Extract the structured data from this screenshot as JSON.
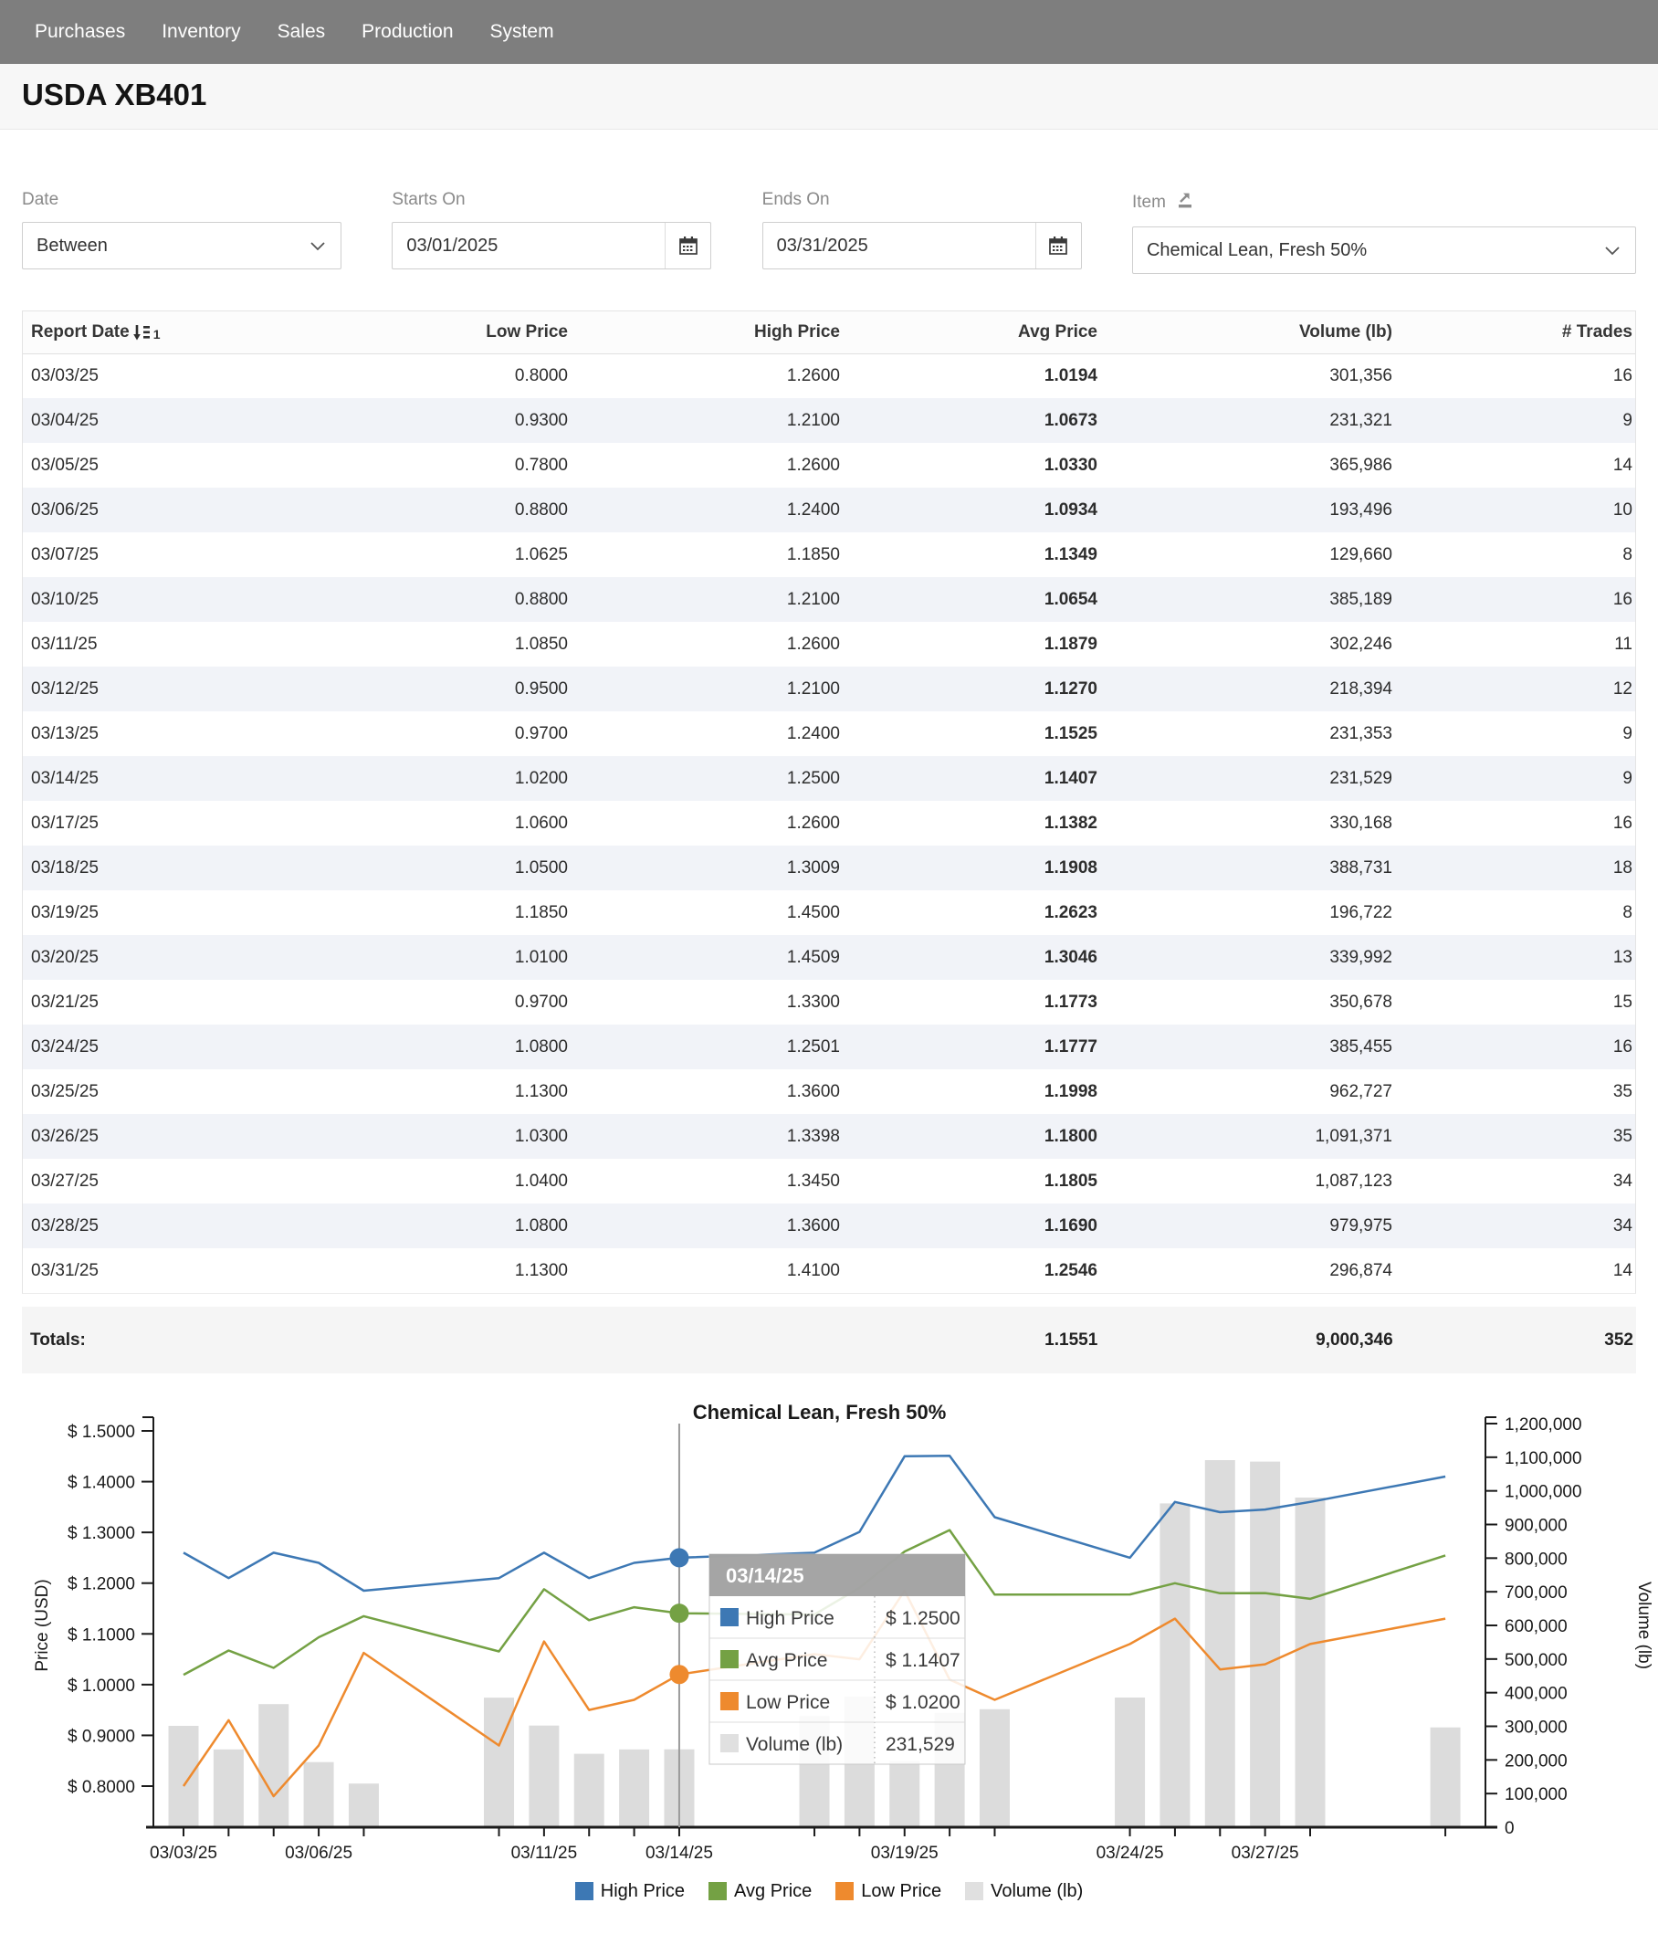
{
  "nav": {
    "items": [
      "Purchases",
      "Inventory",
      "Sales",
      "Production",
      "System"
    ]
  },
  "page": {
    "title": "USDA XB401"
  },
  "filters": {
    "date": {
      "label": "Date",
      "value": "Between"
    },
    "starts_on": {
      "label": "Starts On",
      "value": "03/01/2025"
    },
    "ends_on": {
      "label": "Ends On",
      "value": "03/31/2025"
    },
    "item": {
      "label": "Item",
      "value": "Chemical Lean, Fresh 50%"
    }
  },
  "table": {
    "columns": [
      "Report Date",
      "Low Price",
      "High Price",
      "Avg Price",
      "Volume (lb)",
      "# Trades"
    ],
    "sort_indicator": "1",
    "rows": [
      [
        "03/03/25",
        "0.8000",
        "1.2600",
        "1.0194",
        "301,356",
        "16"
      ],
      [
        "03/04/25",
        "0.9300",
        "1.2100",
        "1.0673",
        "231,321",
        "9"
      ],
      [
        "03/05/25",
        "0.7800",
        "1.2600",
        "1.0330",
        "365,986",
        "14"
      ],
      [
        "03/06/25",
        "0.8800",
        "1.2400",
        "1.0934",
        "193,496",
        "10"
      ],
      [
        "03/07/25",
        "1.0625",
        "1.1850",
        "1.1349",
        "129,660",
        "8"
      ],
      [
        "03/10/25",
        "0.8800",
        "1.2100",
        "1.0654",
        "385,189",
        "16"
      ],
      [
        "03/11/25",
        "1.0850",
        "1.2600",
        "1.1879",
        "302,246",
        "11"
      ],
      [
        "03/12/25",
        "0.9500",
        "1.2100",
        "1.1270",
        "218,394",
        "12"
      ],
      [
        "03/13/25",
        "0.9700",
        "1.2400",
        "1.1525",
        "231,353",
        "9"
      ],
      [
        "03/14/25",
        "1.0200",
        "1.2500",
        "1.1407",
        "231,529",
        "9"
      ],
      [
        "03/17/25",
        "1.0600",
        "1.2600",
        "1.1382",
        "330,168",
        "16"
      ],
      [
        "03/18/25",
        "1.0500",
        "1.3009",
        "1.1908",
        "388,731",
        "18"
      ],
      [
        "03/19/25",
        "1.1850",
        "1.4500",
        "1.2623",
        "196,722",
        "8"
      ],
      [
        "03/20/25",
        "1.0100",
        "1.4509",
        "1.3046",
        "339,992",
        "13"
      ],
      [
        "03/21/25",
        "0.9700",
        "1.3300",
        "1.1773",
        "350,678",
        "15"
      ],
      [
        "03/24/25",
        "1.0800",
        "1.2501",
        "1.1777",
        "385,455",
        "16"
      ],
      [
        "03/25/25",
        "1.1300",
        "1.3600",
        "1.1998",
        "962,727",
        "35"
      ],
      [
        "03/26/25",
        "1.0300",
        "1.3398",
        "1.1800",
        "1,091,371",
        "35"
      ],
      [
        "03/27/25",
        "1.0400",
        "1.3450",
        "1.1805",
        "1,087,123",
        "34"
      ],
      [
        "03/28/25",
        "1.0800",
        "1.3600",
        "1.1690",
        "979,975",
        "34"
      ],
      [
        "03/31/25",
        "1.1300",
        "1.4100",
        "1.2546",
        "296,874",
        "14"
      ]
    ],
    "totals": {
      "label": "Totals:",
      "avg_price": "1.1551",
      "volume": "9,000,346",
      "trades": "352"
    }
  },
  "chart_data": {
    "type": "line+bar",
    "title": "Chemical Lean, Fresh 50%",
    "left_axis": {
      "title": "Price (USD)",
      "tick_values": [
        1.5,
        1.4,
        1.3,
        1.2,
        1.1,
        1.0,
        0.9,
        0.8
      ],
      "tick_labels": [
        "$ 1.5000",
        "$ 1.4000",
        "$ 1.3000",
        "$ 1.2000",
        "$ 1.1000",
        "$ 1.0000",
        "$ 0.9000",
        "$ 0.8000"
      ]
    },
    "right_axis": {
      "title": "Volume (lb)",
      "max": 1200000,
      "tick_values": [
        1200000,
        1100000,
        1000000,
        900000,
        800000,
        700000,
        600000,
        500000,
        400000,
        300000,
        200000,
        100000,
        0
      ],
      "tick_labels": [
        "1,200,000",
        "1,100,000",
        "1,000,000",
        "900,000",
        "800,000",
        "700,000",
        "600,000",
        "500,000",
        "400,000",
        "300,000",
        "200,000",
        "100,000",
        "0"
      ]
    },
    "x_axis": {
      "tick_labels": [
        "03/03/25",
        "03/06/25",
        "03/11/25",
        "03/14/25",
        "03/19/25",
        "03/24/25",
        "03/27/25"
      ],
      "labeled_indices": [
        0,
        3,
        6,
        9,
        12,
        15,
        18
      ]
    },
    "points": [
      {
        "date": "03/03/25",
        "day": 0,
        "high": 1.26,
        "avg": 1.0194,
        "low": 0.8,
        "volume": 301356
      },
      {
        "date": "03/04/25",
        "day": 1,
        "high": 1.21,
        "avg": 1.0673,
        "low": 0.93,
        "volume": 231321
      },
      {
        "date": "03/05/25",
        "day": 2,
        "high": 1.26,
        "avg": 1.033,
        "low": 0.78,
        "volume": 365986
      },
      {
        "date": "03/06/25",
        "day": 3,
        "high": 1.24,
        "avg": 1.0934,
        "low": 0.88,
        "volume": 193496
      },
      {
        "date": "03/07/25",
        "day": 4,
        "high": 1.185,
        "avg": 1.1349,
        "low": 1.0625,
        "volume": 129660
      },
      {
        "date": "03/10/25",
        "day": 7,
        "high": 1.21,
        "avg": 1.0654,
        "low": 0.88,
        "volume": 385189
      },
      {
        "date": "03/11/25",
        "day": 8,
        "high": 1.26,
        "avg": 1.1879,
        "low": 1.085,
        "volume": 302246
      },
      {
        "date": "03/12/25",
        "day": 9,
        "high": 1.21,
        "avg": 1.127,
        "low": 0.95,
        "volume": 218394
      },
      {
        "date": "03/13/25",
        "day": 10,
        "high": 1.24,
        "avg": 1.1525,
        "low": 0.97,
        "volume": 231353
      },
      {
        "date": "03/14/25",
        "day": 11,
        "high": 1.25,
        "avg": 1.1407,
        "low": 1.02,
        "volume": 231529
      },
      {
        "date": "03/17/25",
        "day": 14,
        "high": 1.26,
        "avg": 1.1382,
        "low": 1.06,
        "volume": 330168
      },
      {
        "date": "03/18/25",
        "day": 15,
        "high": 1.3009,
        "avg": 1.1908,
        "low": 1.05,
        "volume": 388731
      },
      {
        "date": "03/19/25",
        "day": 16,
        "high": 1.45,
        "avg": 1.2623,
        "low": 1.185,
        "volume": 196722
      },
      {
        "date": "03/20/25",
        "day": 17,
        "high": 1.4509,
        "avg": 1.3046,
        "low": 1.01,
        "volume": 339992
      },
      {
        "date": "03/21/25",
        "day": 18,
        "high": 1.33,
        "avg": 1.1773,
        "low": 0.97,
        "volume": 350678
      },
      {
        "date": "03/24/25",
        "day": 21,
        "high": 1.2501,
        "avg": 1.1777,
        "low": 1.08,
        "volume": 385455
      },
      {
        "date": "03/25/25",
        "day": 22,
        "high": 1.36,
        "avg": 1.1998,
        "low": 1.13,
        "volume": 962727
      },
      {
        "date": "03/26/25",
        "day": 23,
        "high": 1.3398,
        "avg": 1.18,
        "low": 1.03,
        "volume": 1091371
      },
      {
        "date": "03/27/25",
        "day": 24,
        "high": 1.345,
        "avg": 1.1805,
        "low": 1.04,
        "volume": 1087123
      },
      {
        "date": "03/28/25",
        "day": 25,
        "high": 1.36,
        "avg": 1.169,
        "low": 1.08,
        "volume": 979975
      },
      {
        "date": "03/31/25",
        "day": 28,
        "high": 1.41,
        "avg": 1.2546,
        "low": 1.13,
        "volume": 296874
      }
    ],
    "colors": {
      "high": "#3d78b4",
      "avg": "#74a144",
      "low": "#ee8a2e",
      "volume": "#dcdcdc",
      "hover_line": "#9b9b9b"
    },
    "legend": [
      {
        "label": "High Price",
        "color": "#3d78b4"
      },
      {
        "label": "Avg Price",
        "color": "#74a144"
      },
      {
        "label": "Low Price",
        "color": "#ee8a2e"
      },
      {
        "label": "Volume (lb)",
        "color": "#e0e0e0"
      }
    ],
    "tooltip": {
      "date": "03/14/25",
      "rows": [
        {
          "label": "High Price",
          "value": "$ 1.2500",
          "color": "#3d78b4"
        },
        {
          "label": "Avg Price",
          "value": "$ 1.1407",
          "color": "#74a144"
        },
        {
          "label": "Low Price",
          "value": "$ 1.0200",
          "color": "#ee8a2e"
        },
        {
          "label": "Volume (lb)",
          "value": "231,529",
          "color": "#e0e0e0"
        }
      ]
    }
  }
}
